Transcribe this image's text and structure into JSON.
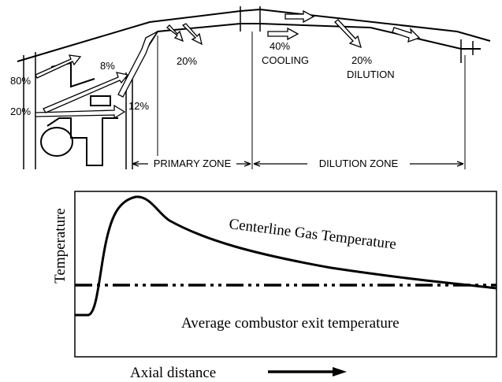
{
  "schematic": {
    "labels": {
      "primary_air": "80%",
      "swirler_air": "20%",
      "dome_air": "8%",
      "secondary_air": "12%",
      "primary_holes": "20%",
      "cooling_pct": "40%",
      "cooling": "COOLING",
      "dilution_pct": "20%",
      "dilution": "DILUTION"
    },
    "zones": [
      "PRIMARY ZONE",
      "DILUTION ZONE"
    ]
  },
  "plot": {
    "y_axis_label": "Temperature",
    "curve_label": "Centerline Gas Temperature",
    "reference_label": "Average combustor exit temperature",
    "x_axis_label": "Axial distance"
  }
}
